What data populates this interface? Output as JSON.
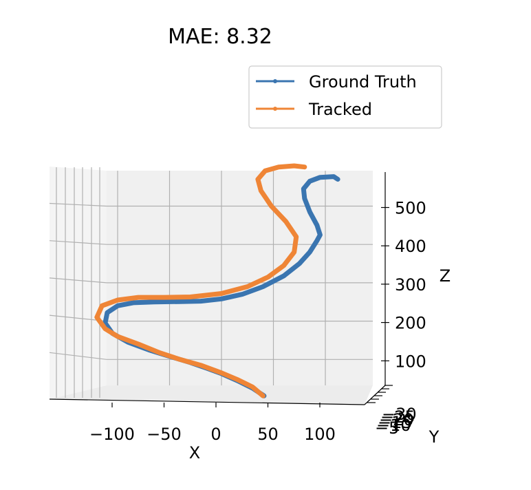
{
  "chart_data": {
    "type": "line",
    "projection": "3d",
    "title": "MAE: 8.32",
    "xlabel": "X",
    "ylabel": "Y",
    "zlabel": "Z",
    "xlim": [
      -140,
      120
    ],
    "ylim": [
      -35,
      -5
    ],
    "zlim": [
      0,
      560
    ],
    "x_ticks": [
      -100,
      -50,
      0,
      50,
      100
    ],
    "x_tick_labels": [
      "−100",
      "−50",
      "0",
      "50",
      "100"
    ],
    "z_ticks": [
      100,
      200,
      300,
      400,
      500
    ],
    "z_tick_labels": [
      "100",
      "200",
      "300",
      "400",
      "500"
    ],
    "y_tick_labels": [
      "−5",
      "−10",
      "−15",
      "−20",
      "−25",
      "−30"
    ],
    "grid": true,
    "legend_position": "top-right",
    "series": [
      {
        "name": "Ground Truth",
        "color": "#3a75b0",
        "x": [
          41,
          30,
          15,
          0,
          -15,
          -30,
          -50,
          -70,
          -90,
          -105,
          -112,
          -110,
          -100,
          -85,
          -65,
          -40,
          -20,
          0,
          20,
          40,
          60,
          75,
          85,
          92,
          95,
          92,
          85,
          80,
          79,
          85,
          95,
          108,
          112
        ],
        "y": [
          -20,
          -20,
          -20,
          -20,
          -20,
          -20,
          -20,
          -20,
          -20,
          -20,
          -20,
          -20,
          -20,
          -20,
          -20,
          -20,
          -20,
          -20,
          -20,
          -20,
          -20,
          -20,
          -20,
          -20,
          -20,
          -20,
          -20,
          -20,
          -20,
          -20,
          -20,
          -20,
          -20
        ],
        "z": [
          5,
          25,
          45,
          63,
          78,
          92,
          108,
          125,
          145,
          168,
          195,
          222,
          240,
          248,
          250,
          251,
          252,
          258,
          270,
          290,
          318,
          350,
          380,
          410,
          425,
          450,
          485,
          520,
          545,
          565,
          575,
          577,
          570
        ]
      },
      {
        "name": "Tracked",
        "color": "#ef8536",
        "x": [
          40,
          30,
          15,
          0,
          -20,
          -40,
          -60,
          -80,
          -100,
          -112,
          -120,
          -115,
          -100,
          -80,
          -55,
          -30,
          0,
          25,
          45,
          60,
          70,
          72,
          62,
          48,
          38,
          35,
          42,
          55,
          70,
          80
        ],
        "y": [
          -20,
          -20,
          -20,
          -20,
          -20,
          -20,
          -20,
          -20,
          -20,
          -20,
          -20,
          -20,
          -20,
          -20,
          -20,
          -20,
          -20,
          -20,
          -20,
          -20,
          -20,
          -20,
          -20,
          -20,
          -20,
          -20,
          -20,
          -20,
          -20,
          -20
        ],
        "z": [
          5,
          28,
          48,
          65,
          85,
          100,
          118,
          140,
          160,
          180,
          210,
          240,
          255,
          262,
          262,
          263,
          272,
          290,
          315,
          345,
          380,
          420,
          460,
          500,
          540,
          570,
          592,
          602,
          605,
          602
        ]
      }
    ]
  }
}
